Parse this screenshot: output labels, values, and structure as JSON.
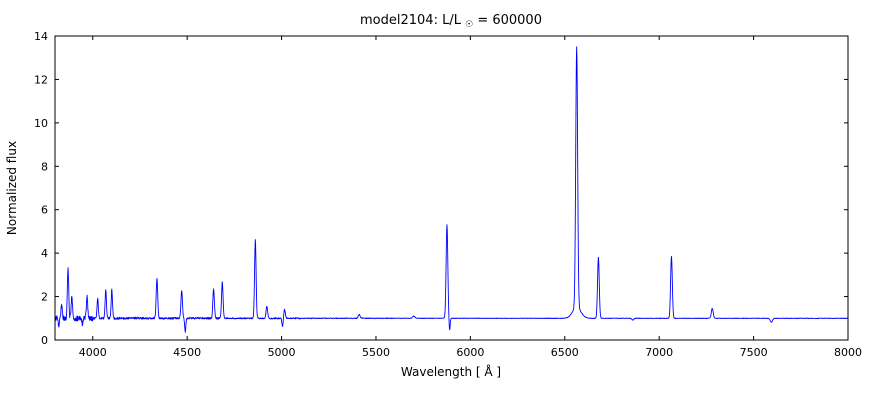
{
  "figure": {
    "title_prefix": "model2104: L/L",
    "title_sub": "☉",
    "title_suffix": " = 600000"
  },
  "chart_data": {
    "type": "line",
    "title": "model2104: L/L☉ = 600000",
    "xlabel": "Wavelength [ Å ]",
    "ylabel": "Normalized flux",
    "xlim": [
      3800,
      8000
    ],
    "ylim": [
      0,
      14
    ],
    "xticks": [
      4000,
      4500,
      5000,
      5500,
      6000,
      6500,
      7000,
      7500,
      8000
    ],
    "yticks": [
      0,
      2,
      4,
      6,
      8,
      10,
      12,
      14
    ],
    "grid": false,
    "legend": "none",
    "line_color": "#0000ff",
    "frame_color": "#000000",
    "background": "#ffffff",
    "continuum_level": 1.0,
    "emission_lines": [
      {
        "wavelength": 3835,
        "peak_flux": 1.55,
        "sigma": 3.5
      },
      {
        "wavelength": 3869,
        "peak_flux": 3.3,
        "sigma": 3.5
      },
      {
        "wavelength": 3889,
        "peak_flux": 2.0,
        "sigma": 3.5
      },
      {
        "wavelength": 3970,
        "peak_flux": 1.95,
        "sigma": 3.5
      },
      {
        "wavelength": 4026,
        "peak_flux": 1.9,
        "sigma": 3.5
      },
      {
        "wavelength": 4069,
        "peak_flux": 2.3,
        "sigma": 3.5
      },
      {
        "wavelength": 4101,
        "peak_flux": 2.3,
        "sigma": 3.5
      },
      {
        "wavelength": 4340,
        "peak_flux": 2.8,
        "sigma": 4
      },
      {
        "wavelength": 4471,
        "peak_flux": 2.25,
        "sigma": 4
      },
      {
        "wavelength": 4640,
        "peak_flux": 2.35,
        "sigma": 4
      },
      {
        "wavelength": 4686,
        "peak_flux": 2.65,
        "sigma": 4
      },
      {
        "wavelength": 4861,
        "peak_flux": 4.6,
        "sigma": 4
      },
      {
        "wavelength": 4922,
        "peak_flux": 1.55,
        "sigma": 4
      },
      {
        "wavelength": 5016,
        "peak_flux": 1.4,
        "sigma": 4
      },
      {
        "wavelength": 5411,
        "peak_flux": 1.18,
        "sigma": 5
      },
      {
        "wavelength": 5700,
        "peak_flux": 1.1,
        "sigma": 6
      },
      {
        "wavelength": 5876,
        "peak_flux": 5.3,
        "sigma": 4.5
      },
      {
        "wavelength": 6563,
        "peak_flux": 13.0,
        "sigma": 5
      },
      {
        "wavelength": 6563,
        "peak_flux": 1.5,
        "sigma": 22
      },
      {
        "wavelength": 6678,
        "peak_flux": 3.8,
        "sigma": 4.5
      },
      {
        "wavelength": 7065,
        "peak_flux": 3.85,
        "sigma": 4.5
      },
      {
        "wavelength": 7281,
        "peak_flux": 1.45,
        "sigma": 5
      }
    ],
    "absorption_dips": [
      {
        "wavelength": 3820,
        "min_flux": 0.62,
        "sigma": 3
      },
      {
        "wavelength": 3945,
        "min_flux": 0.75,
        "sigma": 3
      },
      {
        "wavelength": 4490,
        "min_flux": 0.38,
        "sigma": 3
      },
      {
        "wavelength": 5005,
        "min_flux": 0.6,
        "sigma": 3
      },
      {
        "wavelength": 5890,
        "min_flux": 0.45,
        "sigma": 3
      },
      {
        "wavelength": 6860,
        "min_flux": 0.92,
        "sigma": 5
      },
      {
        "wavelength": 7594,
        "min_flux": 0.82,
        "sigma": 6
      }
    ],
    "noise_segments": [
      {
        "from": 3800,
        "to": 4000,
        "amplitude": 0.12
      },
      {
        "from": 4000,
        "to": 4300,
        "amplitude": 0.05
      },
      {
        "from": 4300,
        "to": 4700,
        "amplitude": 0.04
      },
      {
        "from": 4700,
        "to": 5100,
        "amplitude": 0.03
      },
      {
        "from": 5100,
        "to": 5600,
        "amplitude": 0.018
      },
      {
        "from": 5600,
        "to": 8000,
        "amplitude": 0.012
      }
    ]
  }
}
